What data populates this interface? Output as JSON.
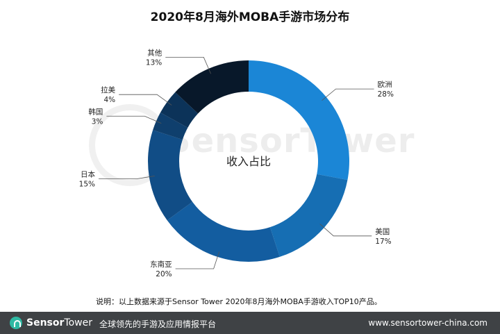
{
  "chart_data": {
    "type": "pie",
    "title": "2020年8月海外MOBA手游市场分布",
    "center_label": "收入占比",
    "slices": [
      {
        "label": "欧洲",
        "value": 28,
        "value_text": "28%",
        "color": "#1b86d6"
      },
      {
        "label": "美国",
        "value": 17,
        "value_text": "17%",
        "color": "#166eb3"
      },
      {
        "label": "东南亚",
        "value": 20,
        "value_text": "20%",
        "color": "#135da0"
      },
      {
        "label": "日本",
        "value": 15,
        "value_text": "15%",
        "color": "#114d86"
      },
      {
        "label": "韩国",
        "value": 3,
        "value_text": "3%",
        "color": "#0f3f6d"
      },
      {
        "label": "拉美",
        "value": 4,
        "value_text": "4%",
        "color": "#0c3359"
      },
      {
        "label": "其他",
        "value": 13,
        "value_text": "13%",
        "color": "#08182a"
      }
    ]
  },
  "footnote": "说明：以上数据来源于Sensor Tower 2020年8月海外MOBA手游收入TOP10产品。",
  "watermark": "SensorTower",
  "footer": {
    "brand_sensor": "Sensor",
    "brand_tower": "Tower",
    "slogan": "全球领先的手游及应用情报平台",
    "url": "www.sensortower-china.com"
  }
}
